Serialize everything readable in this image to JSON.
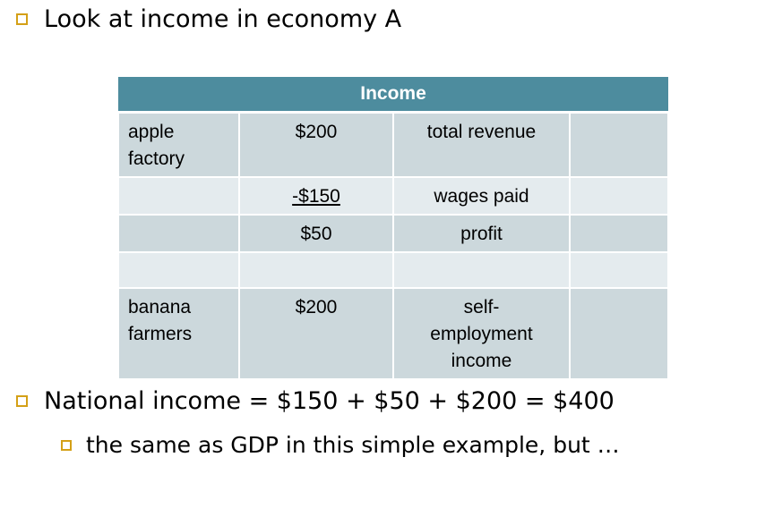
{
  "bullets": {
    "top": "Look at income in economy A",
    "national_income": "National income = $150 + $50 + $200 = $400",
    "sub": "the same as GDP in this simple example, but …"
  },
  "table": {
    "header": "Income",
    "rows": [
      {
        "label": "apple factory",
        "amount": "$200",
        "desc": "total revenue",
        "extra": ""
      },
      {
        "label": "",
        "amount": "-$150",
        "desc": "wages paid",
        "extra": ""
      },
      {
        "label": "",
        "amount": "$50",
        "desc": "profit",
        "extra": ""
      },
      {
        "label": "",
        "amount": "",
        "desc": "",
        "extra": ""
      },
      {
        "label": "banana farmers",
        "amount": "$200",
        "desc": "self-employment income",
        "extra": ""
      }
    ]
  },
  "colors": {
    "bullet": "#d4a017",
    "header_bg": "#4d8c9e",
    "row_dark": "#ccd8dc",
    "row_light": "#e4ebee"
  },
  "icons": {
    "bullet": "hollow-square-icon"
  }
}
